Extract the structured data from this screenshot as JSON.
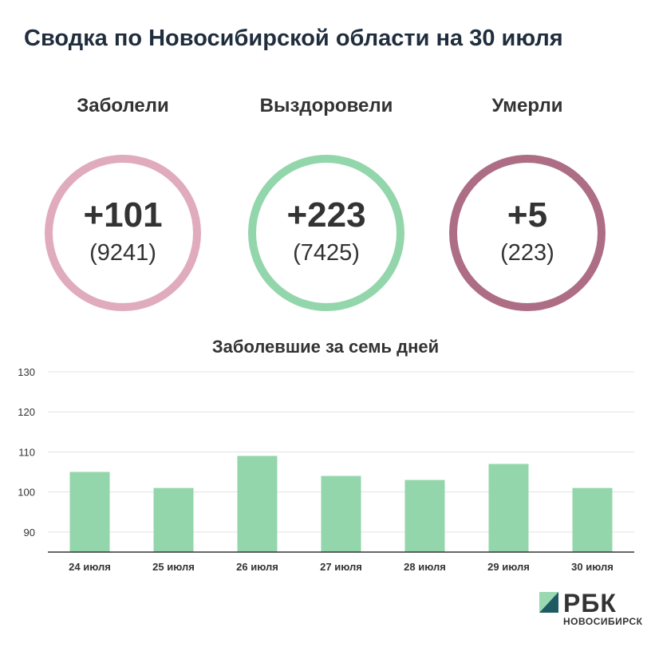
{
  "title": "Сводка по Новосибирской области на 30 июля",
  "stats": [
    {
      "label": "Заболели",
      "main": "+101",
      "sub": "(9241)",
      "color": "#e0abbc"
    },
    {
      "label": "Выздоровели",
      "main": "+223",
      "sub": "(7425)",
      "color": "#93d6ab"
    },
    {
      "label": "Умерли",
      "main": "+5",
      "sub": "(223)",
      "color": "#ad6e85"
    }
  ],
  "chart_data": {
    "type": "bar",
    "title": "Заболевшие за семь дней",
    "categories": [
      "24 июля",
      "25 июля",
      "26 июля",
      "27 июля",
      "28 июля",
      "29 июля",
      "30 июля"
    ],
    "values": [
      105,
      101,
      109,
      104,
      103,
      107,
      101
    ],
    "ylim": [
      85,
      130
    ],
    "yticks": [
      90,
      100,
      110,
      120,
      130
    ],
    "grid": true,
    "bar_color": "#93d6ab"
  },
  "logo": {
    "name": "РБК",
    "sub": "НОВОСИБИРСК"
  }
}
